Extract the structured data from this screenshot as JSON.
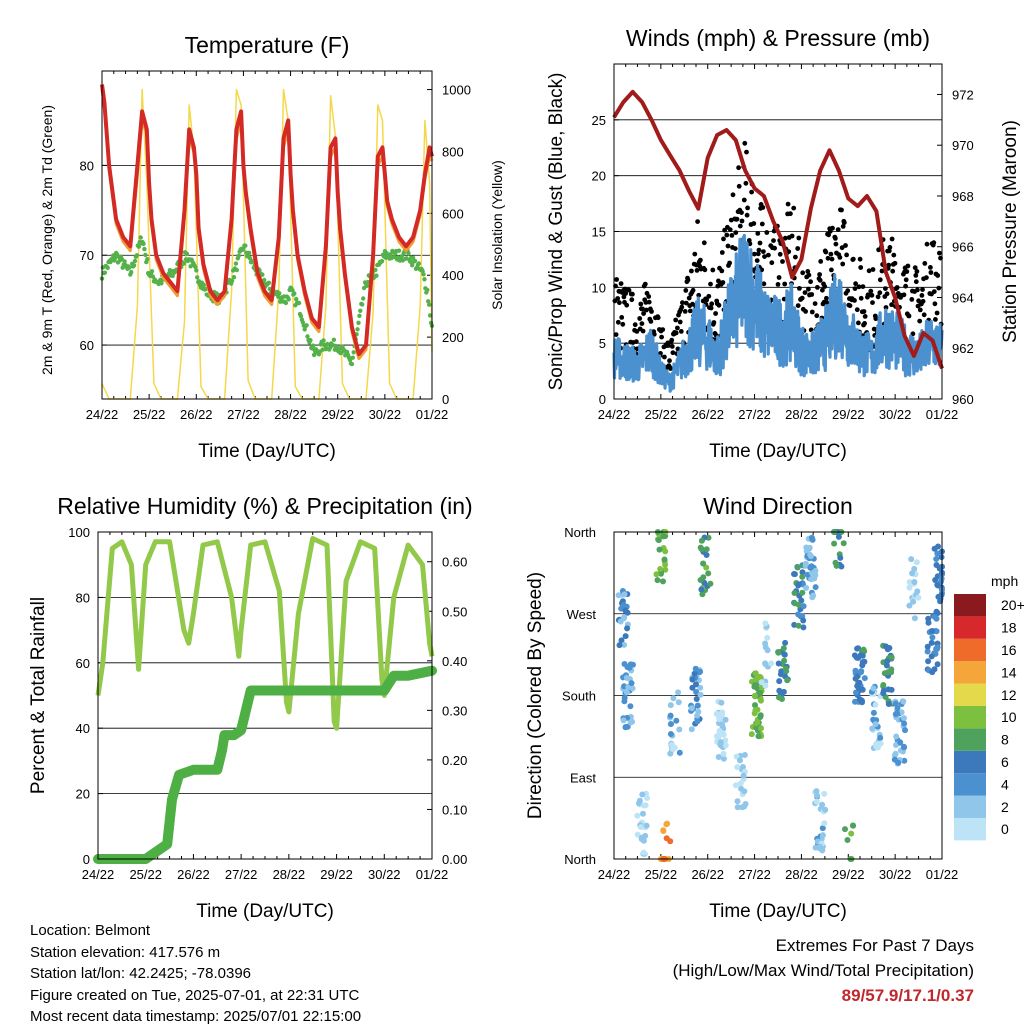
{
  "chart_data": [
    {
      "type": "line",
      "title": "Temperature (F)",
      "xlabel": "Time (Day/UTC)",
      "ylabel": "2m & 9m T (Red, Orange) & 2m Td (Green)",
      "ylabel_right": "Solar Insolation (Yellow)",
      "x_ticks": [
        "24/22",
        "25/22",
        "26/22",
        "27/22",
        "28/22",
        "29/22",
        "30/22",
        "01/22"
      ],
      "ylim": [
        54,
        64
      ],
      "ylim_left": [
        54,
        90.5
      ],
      "y_ticks_left": [
        60,
        70,
        80
      ],
      "ylim_right": [
        0,
        1060
      ],
      "y_ticks_right": [
        0,
        200,
        400,
        600,
        800,
        1000
      ],
      "grid": "y",
      "colors": {
        "t2m": "#d42a26",
        "t9m": "#f39c34",
        "td2m": "#55b14a",
        "solar": "#f5d84a"
      },
      "series": [
        {
          "key": "t2m",
          "x": [
            0,
            0.05,
            0.15,
            0.3,
            0.45,
            0.6,
            0.75,
            0.85,
            0.95,
            1.0,
            1.05,
            1.15,
            1.3,
            1.45,
            1.6,
            1.75,
            1.85,
            1.95,
            2.0,
            2.05,
            2.15,
            2.3,
            2.45,
            2.6,
            2.75,
            2.85,
            2.95,
            3.0,
            3.05,
            3.15,
            3.3,
            3.45,
            3.6,
            3.75,
            3.85,
            3.95,
            4.0,
            4.05,
            4.15,
            4.3,
            4.45,
            4.6,
            4.75,
            4.85,
            4.95,
            5.0,
            5.05,
            5.15,
            5.3,
            5.45,
            5.6,
            5.75,
            5.85,
            5.95,
            6.0,
            6.05,
            6.15,
            6.3,
            6.45,
            6.6,
            6.75,
            6.85,
            6.95,
            7.0
          ],
          "y": [
            89,
            87,
            80,
            74,
            72,
            71,
            80,
            86,
            84,
            78,
            74,
            70,
            68,
            67,
            66,
            75,
            84,
            82,
            79,
            73,
            69,
            66,
            65,
            66,
            74,
            84,
            86,
            80,
            77,
            73,
            68,
            66,
            65,
            72,
            83,
            85,
            79,
            75,
            70,
            66,
            63,
            62,
            71,
            82,
            83,
            77,
            73,
            68,
            62,
            59,
            60,
            70,
            81,
            82,
            79,
            76,
            74,
            72,
            71,
            72,
            75,
            79,
            82,
            81
          ]
        },
        {
          "key": "t9m",
          "x": [
            0,
            0.05,
            0.15,
            0.3,
            0.45,
            0.6,
            0.75,
            0.85,
            0.95,
            1.0,
            1.05,
            1.15,
            1.3,
            1.45,
            1.6,
            1.75,
            1.85,
            1.95,
            2.0,
            2.05,
            2.15,
            2.3,
            2.45,
            2.6,
            2.75,
            2.85,
            2.95,
            3.0,
            3.05,
            3.15,
            3.3,
            3.45,
            3.6,
            3.75,
            3.85,
            3.95,
            4.0,
            4.05,
            4.15,
            4.3,
            4.45,
            4.6,
            4.75,
            4.85,
            4.95,
            5.0,
            5.05,
            5.15,
            5.3,
            5.45,
            5.6,
            5.75,
            5.85,
            5.95,
            6.0,
            6.05,
            6.15,
            6.3,
            6.45,
            6.6,
            6.75,
            6.85,
            6.95,
            7.0
          ],
          "y": [
            88.5,
            86.5,
            79.5,
            73.5,
            71.5,
            70.5,
            79,
            85,
            83.5,
            77.5,
            73.5,
            69.5,
            67.5,
            66.5,
            65.5,
            74.5,
            83,
            81.5,
            78.5,
            72.5,
            68.5,
            65.5,
            64.5,
            65.5,
            73.5,
            83,
            85,
            79.5,
            76.5,
            72.5,
            67.5,
            65.5,
            64.5,
            71.5,
            82,
            84,
            78.5,
            74.5,
            69.5,
            65.5,
            62.5,
            61.5,
            70.5,
            81,
            82,
            76.5,
            72.5,
            67.5,
            61.5,
            58.5,
            59.5,
            69.5,
            80,
            81,
            78.5,
            75.5,
            73.5,
            71.5,
            70.5,
            71.5,
            74.5,
            78.5,
            81,
            80.5
          ]
        },
        {
          "key": "td2m",
          "x": [
            0,
            0.3,
            0.6,
            0.85,
            1.0,
            1.2,
            1.5,
            1.8,
            2.0,
            2.2,
            2.5,
            2.8,
            3.0,
            3.3,
            3.6,
            3.9,
            4.0,
            4.2,
            4.5,
            4.7,
            4.9,
            5.0,
            5.3,
            5.6,
            5.8,
            6.0,
            6.2,
            6.5,
            6.8,
            6.9,
            7.0
          ],
          "y": [
            68,
            70,
            68,
            72,
            68,
            67,
            68,
            70,
            68,
            66,
            65,
            68,
            71,
            68,
            66,
            65,
            66,
            64,
            59,
            60,
            60,
            60,
            58,
            67,
            68,
            70,
            70,
            70,
            68,
            66,
            62
          ]
        },
        {
          "key": "solar",
          "x": [
            0.0,
            0.15,
            0.3,
            0.45,
            0.6,
            0.75,
            0.85,
            0.95,
            1.1,
            1.25,
            1.4,
            1.6,
            1.75,
            1.85,
            1.95,
            2.1,
            2.25,
            2.4,
            2.6,
            2.75,
            2.85,
            2.95,
            3.1,
            3.25,
            3.4,
            3.6,
            3.75,
            3.85,
            3.95,
            4.1,
            4.25,
            4.4,
            4.6,
            4.75,
            4.85,
            4.95,
            5.1,
            5.25,
            5.4,
            5.6,
            5.75,
            5.85,
            5.95,
            6.1,
            6.25,
            6.4,
            6.6,
            6.75,
            6.85,
            6.95,
            7.0
          ],
          "y": [
            50,
            0,
            0,
            0,
            0,
            300,
            1000,
            700,
            50,
            0,
            0,
            0,
            250,
            950,
            800,
            40,
            0,
            0,
            0,
            350,
            1000,
            950,
            60,
            0,
            0,
            0,
            350,
            1000,
            900,
            40,
            0,
            0,
            0,
            300,
            980,
            850,
            50,
            0,
            0,
            0,
            280,
            950,
            900,
            50,
            0,
            0,
            0,
            300,
            900,
            700,
            150
          ]
        }
      ]
    },
    {
      "type": "scatter",
      "title": "Winds (mph) & Pressure (mb)",
      "xlabel": "Time (Day/UTC)",
      "ylabel": "Sonic/Prop Wind & Gust (Blue, Black)",
      "ylabel_right": "Station Pressure (Maroon)",
      "x_ticks": [
        "24/22",
        "25/22",
        "26/22",
        "27/22",
        "28/22",
        "29/22",
        "30/22",
        "01/22"
      ],
      "ylim": [
        0,
        30
      ],
      "y_ticks_left": [
        0,
        5,
        10,
        15,
        20,
        25
      ],
      "ylim_right": [
        960,
        973.2
      ],
      "y_ticks_right": [
        960,
        962,
        964,
        966,
        968,
        970,
        972
      ],
      "grid": "y",
      "colors": {
        "wind": "#4b90cf",
        "gust": "#000000",
        "pressure": "#a11b1b"
      },
      "wind_envelope": {
        "x": [
          0,
          0.5,
          0.8,
          1.0,
          1.2,
          1.5,
          1.8,
          2.0,
          2.2,
          2.5,
          2.8,
          3.0,
          3.2,
          3.5,
          3.8,
          4.0,
          4.2,
          4.5,
          4.8,
          5.0,
          5.2,
          5.5,
          5.8,
          6.0,
          6.2,
          6.5,
          6.8,
          7.0
        ],
        "y": [
          5,
          4,
          6,
          3,
          2,
          5,
          8,
          7,
          5,
          10,
          14,
          12,
          9,
          8,
          9,
          6,
          5,
          7,
          11,
          8,
          6,
          5,
          8,
          7,
          6,
          5,
          7,
          6
        ]
      },
      "gust_envelope": {
        "x": [
          0,
          0.5,
          0.8,
          1.0,
          1.2,
          1.5,
          1.8,
          2.0,
          2.2,
          2.5,
          2.8,
          3.0,
          3.2,
          3.5,
          3.8,
          4.0,
          4.2,
          4.5,
          4.8,
          5.0,
          5.2,
          5.5,
          5.8,
          6.0,
          6.2,
          6.5,
          6.8,
          7.0
        ],
        "y": [
          9,
          7,
          9,
          5,
          4,
          8,
          13,
          11,
          9,
          14,
          18,
          16,
          13,
          12,
          14,
          10,
          9,
          11,
          14,
          12,
          10,
          9,
          12,
          11,
          10,
          9,
          12,
          10
        ]
      },
      "series": [
        {
          "key": "pressure",
          "x": [
            0,
            0.2,
            0.4,
            0.6,
            0.8,
            1.0,
            1.2,
            1.4,
            1.6,
            1.8,
            2.0,
            2.2,
            2.4,
            2.6,
            2.8,
            3.0,
            3.2,
            3.4,
            3.6,
            3.8,
            4.0,
            4.2,
            4.4,
            4.6,
            4.8,
            5.0,
            5.2,
            5.4,
            5.6,
            5.8,
            6.0,
            6.2,
            6.4,
            6.6,
            6.8,
            7.0
          ],
          "y": [
            971.1,
            971.7,
            972.1,
            971.7,
            971.0,
            970.2,
            969.6,
            969.0,
            968.2,
            967.5,
            969.5,
            970.4,
            970.6,
            970.2,
            969.0,
            968.3,
            968.0,
            967.0,
            966.2,
            964.8,
            965.5,
            967.5,
            969.0,
            969.8,
            969.0,
            967.9,
            967.6,
            968.0,
            967.4,
            965.0,
            964.0,
            962.5,
            961.7,
            962.6,
            962.3,
            961.2
          ]
        }
      ]
    },
    {
      "type": "line",
      "title": "Relative Humidity (%) & Precipitation (in)",
      "xlabel": "Time (Day/UTC)",
      "ylabel": "Percent & Total Rainfall",
      "x_ticks": [
        "24/22",
        "25/22",
        "26/22",
        "27/22",
        "28/22",
        "29/22",
        "30/22",
        "01/22"
      ],
      "ylim": [
        0,
        100
      ],
      "y_ticks_left": [
        0,
        20,
        40,
        60,
        80,
        100
      ],
      "ylim_right": [
        0,
        0.66
      ],
      "y_ticks_right": [
        "0.00",
        "0.10",
        "0.20",
        "0.30",
        "0.40",
        "0.50",
        "0.60"
      ],
      "grid": "y",
      "colors": {
        "rh": "#92c94a",
        "precip": "#4eaf44"
      },
      "series": [
        {
          "key": "rh",
          "x": [
            0,
            0.1,
            0.3,
            0.5,
            0.7,
            0.85,
            1.0,
            1.2,
            1.5,
            1.8,
            1.9,
            2.0,
            2.2,
            2.5,
            2.8,
            2.95,
            3.0,
            3.2,
            3.5,
            3.8,
            3.95,
            4.0,
            4.2,
            4.5,
            4.8,
            4.95,
            5.0,
            5.2,
            5.5,
            5.8,
            5.95,
            6.0,
            6.2,
            6.5,
            6.8,
            6.95,
            7.0
          ],
          "y": [
            50,
            60,
            95,
            97,
            90,
            58,
            90,
            97,
            97,
            70,
            66,
            75,
            96,
            97,
            80,
            62,
            70,
            96,
            97,
            82,
            48,
            45,
            75,
            98,
            96,
            42,
            40,
            85,
            97,
            95,
            55,
            50,
            80,
            96,
            90,
            66,
            62
          ]
        },
        {
          "key": "precip",
          "x": [
            0,
            1.0,
            1.3,
            1.45,
            1.55,
            1.7,
            2.0,
            2.5,
            2.6,
            2.65,
            2.85,
            3.0,
            3.2,
            4.0,
            4.5,
            5.0,
            5.5,
            6.0,
            6.2,
            6.5,
            7.0
          ],
          "y": [
            0,
            0,
            0.02,
            0.03,
            0.12,
            0.17,
            0.18,
            0.18,
            0.22,
            0.25,
            0.25,
            0.26,
            0.34,
            0.34,
            0.34,
            0.34,
            0.34,
            0.34,
            0.37,
            0.37,
            0.38
          ]
        }
      ]
    },
    {
      "type": "scatter",
      "title": "Wind Direction",
      "xlabel": "Time (Day/UTC)",
      "ylabel": "Direction (Colored By Speed)",
      "x_ticks": [
        "24/22",
        "25/22",
        "26/22",
        "27/22",
        "28/22",
        "29/22",
        "30/22",
        "01/22"
      ],
      "y_ticks": [
        "North",
        "East",
        "South",
        "West",
        "North"
      ],
      "ylim": [
        0,
        360
      ],
      "grid": "y",
      "colorbar_title": "mph",
      "colorbar_labels": [
        "0",
        "2",
        "4",
        "6",
        "8",
        "10",
        "12",
        "14",
        "16",
        "18",
        "20+"
      ],
      "colorbar_colors": [
        "#bde3f6",
        "#8fc6ea",
        "#4b90cf",
        "#3c78bc",
        "#4ea25e",
        "#7dbf3f",
        "#e4d94a",
        "#f4a63a",
        "#ef6b2a",
        "#d7292b",
        "#8b1a1e"
      ],
      "clusters": [
        {
          "x": 0.2,
          "y": 265,
          "n": 24,
          "speed": 4
        },
        {
          "x": 0.3,
          "y": 180,
          "n": 30,
          "speed": 3
        },
        {
          "x": 0.6,
          "y": 40,
          "n": 24,
          "speed": 1
        },
        {
          "x": 1.0,
          "y": 340,
          "n": 22,
          "speed": 9
        },
        {
          "x": 1.1,
          "y": 5,
          "n": 14,
          "speed": 14
        },
        {
          "x": 1.3,
          "y": 150,
          "n": 20,
          "speed": 2
        },
        {
          "x": 1.75,
          "y": 175,
          "n": 30,
          "speed": 4
        },
        {
          "x": 1.95,
          "y": 325,
          "n": 20,
          "speed": 8
        },
        {
          "x": 2.3,
          "y": 140,
          "n": 30,
          "speed": 1
        },
        {
          "x": 2.7,
          "y": 80,
          "n": 20,
          "speed": 1
        },
        {
          "x": 3.05,
          "y": 170,
          "n": 45,
          "speed": 9
        },
        {
          "x": 3.25,
          "y": 225,
          "n": 14,
          "speed": 1
        },
        {
          "x": 3.6,
          "y": 210,
          "n": 25,
          "speed": 7
        },
        {
          "x": 3.95,
          "y": 290,
          "n": 30,
          "speed": 6
        },
        {
          "x": 4.2,
          "y": 320,
          "n": 30,
          "speed": 3
        },
        {
          "x": 4.4,
          "y": 40,
          "n": 25,
          "speed": 2
        },
        {
          "x": 4.8,
          "y": 355,
          "n": 18,
          "speed": 7
        },
        {
          "x": 5.0,
          "y": 5,
          "n": 8,
          "speed": 9
        },
        {
          "x": 5.25,
          "y": 200,
          "n": 35,
          "speed": 6
        },
        {
          "x": 5.6,
          "y": 155,
          "n": 28,
          "speed": 2
        },
        {
          "x": 5.85,
          "y": 205,
          "n": 28,
          "speed": 7
        },
        {
          "x": 6.1,
          "y": 140,
          "n": 35,
          "speed": 3
        },
        {
          "x": 6.4,
          "y": 300,
          "n": 20,
          "speed": 1
        },
        {
          "x": 6.8,
          "y": 240,
          "n": 30,
          "speed": 5
        },
        {
          "x": 6.95,
          "y": 310,
          "n": 25,
          "speed": 5
        }
      ]
    }
  ],
  "info": {
    "location": "Location: Belmont",
    "elevation": "Station elevation: 417.576 m",
    "latlon": "Station lat/lon: 42.2425; -78.0396",
    "created": "Figure created on Tue, 2025-07-01, at 22:31 UTC",
    "recent": "Most recent data timestamp: 2025/07/01 22:15:00"
  },
  "extremes": {
    "title": "Extremes For Past 7 Days",
    "subtitle": "(High/Low/Max Wind/Total Precipitation)",
    "values": "89/57.9/17.1/0.37"
  }
}
